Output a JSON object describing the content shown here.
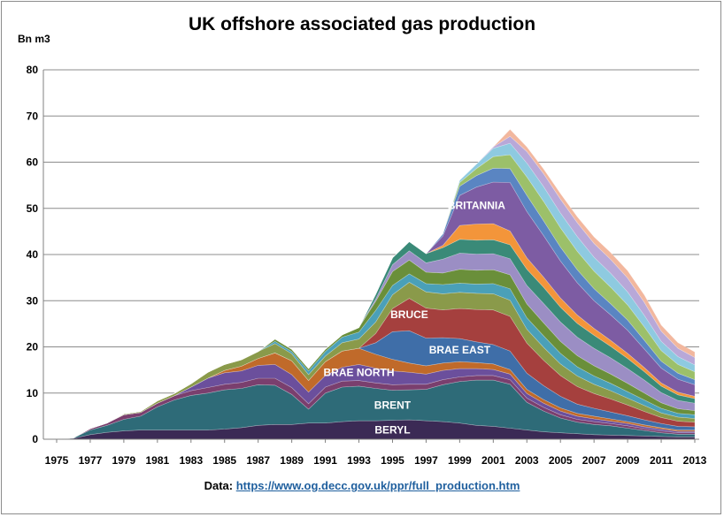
{
  "chart_data": {
    "type": "area",
    "title": "UK offshore associated gas production",
    "ylabel": "Bn m3",
    "xlabel": "",
    "ylim": [
      0,
      80
    ],
    "y_ticks": [
      "0",
      "10",
      "20",
      "30",
      "40",
      "50",
      "60",
      "70",
      "80"
    ],
    "x_ticks": [
      "1975",
      "1977",
      "1979",
      "1981",
      "1983",
      "1985",
      "1987",
      "1989",
      "1991",
      "1993",
      "1995",
      "1997",
      "1999",
      "2001",
      "2003",
      "2005",
      "2007",
      "2009",
      "2011",
      "2013"
    ],
    "grid": true,
    "stacked": true,
    "x": [
      1975,
      1976,
      1977,
      1978,
      1979,
      1980,
      1981,
      1982,
      1983,
      1984,
      1985,
      1986,
      1987,
      1988,
      1989,
      1990,
      1991,
      1992,
      1993,
      1994,
      1995,
      1996,
      1997,
      1998,
      1999,
      2000,
      2001,
      2002,
      2003,
      2004,
      2005,
      2006,
      2007,
      2008,
      2009,
      2010,
      2011,
      2012,
      2013
    ],
    "series": [
      {
        "name": "BERYL",
        "color": "#3b2a55",
        "values": [
          0,
          0.2,
          1.0,
          1.5,
          1.8,
          2.0,
          2.0,
          2.0,
          2.0,
          2.0,
          2.2,
          2.5,
          3.0,
          3.2,
          3.2,
          3.5,
          3.5,
          3.8,
          4.0,
          4.0,
          4.1,
          4.2,
          4.0,
          3.8,
          3.5,
          3.0,
          2.8,
          2.4,
          2.0,
          1.6,
          1.4,
          1.2,
          1.0,
          0.9,
          0.8,
          0.7,
          0.6,
          0.5,
          0.5
        ]
      },
      {
        "name": "BRENT",
        "color": "#2e6b78",
        "values": [
          0,
          0.1,
          1.0,
          1.5,
          2.5,
          3.0,
          5.0,
          6.5,
          7.5,
          8.0,
          8.5,
          8.5,
          8.8,
          8.5,
          6.5,
          3.0,
          6.5,
          7.5,
          7.5,
          7.0,
          6.5,
          6.5,
          6.8,
          8.0,
          9.0,
          9.8,
          10.0,
          9.5,
          6.0,
          4.5,
          3.2,
          2.5,
          2.2,
          2.0,
          1.6,
          1.2,
          0.8,
          0.6,
          0.6
        ]
      },
      {
        "name": "",
        "color": "#7a3f6e",
        "values": [
          0,
          0,
          0.3,
          0.5,
          1.0,
          0.8,
          0.8,
          0.9,
          1.0,
          1.2,
          1.2,
          1.3,
          1.4,
          1.5,
          1.5,
          1.2,
          1.3,
          1.3,
          1.2,
          1.2,
          1.2,
          1.2,
          1.1,
          1.1,
          1.0,
          1.0,
          1.0,
          1.0,
          0.9,
          0.8,
          0.7,
          0.6,
          0.6,
          0.5,
          0.5,
          0.4,
          0.4,
          0.3,
          0.3
        ]
      },
      {
        "name": "BRAE NORTH",
        "color": "#6b4f9c",
        "values": [
          0,
          0,
          0,
          0,
          0,
          0,
          0,
          0,
          0.8,
          2.0,
          2.5,
          2.5,
          2.8,
          3.0,
          2.8,
          2.5,
          2.5,
          3.0,
          3.5,
          3.2,
          3.0,
          2.6,
          2.2,
          2.0,
          1.8,
          1.5,
          1.3,
          1.2,
          1.0,
          0.9,
          0.8,
          0.7,
          0.6,
          0.5,
          0.5,
          0.4,
          0.4,
          0.3,
          0.3
        ]
      },
      {
        "name": "",
        "color": "#c06a2a",
        "values": [
          0,
          0,
          0,
          0,
          0,
          0,
          0,
          0,
          0,
          0,
          0.5,
          1.0,
          1.5,
          2.5,
          3.0,
          2.5,
          3.0,
          3.5,
          3.5,
          3.0,
          2.5,
          2.0,
          1.8,
          1.6,
          1.5,
          1.3,
          1.2,
          1.0,
          0.9,
          0.8,
          0.7,
          0.6,
          0.6,
          0.5,
          0.4,
          0.4,
          0.3,
          0.3,
          0.3
        ]
      },
      {
        "name": "BRAE EAST",
        "color": "#3f6ea8",
        "values": [
          0,
          0,
          0,
          0,
          0,
          0,
          0,
          0,
          0,
          0,
          0,
          0,
          0,
          0,
          0,
          0,
          0,
          0,
          0,
          2.5,
          6.0,
          7.0,
          6.0,
          5.5,
          5.0,
          4.5,
          4.2,
          4.0,
          3.5,
          3.0,
          2.5,
          2.0,
          1.7,
          1.5,
          1.3,
          1.1,
          0.9,
          0.8,
          0.7
        ]
      },
      {
        "name": "BRUCE",
        "color": "#a5403e",
        "values": [
          0,
          0,
          0,
          0,
          0,
          0,
          0,
          0,
          0,
          0,
          0,
          0,
          0,
          0,
          0,
          0,
          0,
          0,
          0,
          2.0,
          5.0,
          7.0,
          6.5,
          6.0,
          6.5,
          7.0,
          7.5,
          7.5,
          6.5,
          5.5,
          4.5,
          3.8,
          3.2,
          2.8,
          2.3,
          1.8,
          1.3,
          1.1,
          1.0
        ]
      },
      {
        "name": "",
        "color": "#8a9a4a",
        "values": [
          0,
          0,
          0,
          0,
          0.2,
          0.2,
          0.5,
          0.5,
          0.7,
          1.3,
          1.3,
          1.4,
          1.5,
          2.0,
          1.5,
          1.3,
          1.2,
          1.8,
          2.0,
          2.5,
          3.0,
          3.5,
          3.5,
          3.5,
          3.5,
          3.5,
          3.5,
          3.5,
          3.0,
          2.8,
          2.5,
          2.3,
          2.0,
          1.8,
          1.5,
          1.3,
          1.0,
          0.9,
          0.8
        ]
      },
      {
        "name": "",
        "color": "#4aa0b8",
        "values": [
          0,
          0,
          0,
          0,
          0,
          0,
          0,
          0,
          0,
          0,
          0,
          0,
          0,
          0.5,
          0.5,
          0.8,
          1.0,
          1.2,
          1.5,
          2.5,
          2.0,
          1.8,
          1.8,
          2.0,
          2.0,
          2.0,
          2.2,
          2.5,
          2.5,
          2.5,
          2.3,
          2.0,
          1.8,
          1.6,
          1.4,
          1.2,
          1.0,
          0.8,
          0.8
        ]
      },
      {
        "name": "",
        "color": "#6a8f3a",
        "values": [
          0,
          0,
          0,
          0,
          0,
          0,
          0,
          0,
          0,
          0,
          0,
          0,
          0,
          0.5,
          0.5,
          0.5,
          0.5,
          0.5,
          1.0,
          2.0,
          3.0,
          3.0,
          2.5,
          2.5,
          3.0,
          3.0,
          3.0,
          3.0,
          3.0,
          2.8,
          2.6,
          2.4,
          2.2,
          2.0,
          1.8,
          1.5,
          1.2,
          1.0,
          0.9
        ]
      },
      {
        "name": "",
        "color": "#9b8ec4",
        "values": [
          0,
          0,
          0,
          0,
          0,
          0,
          0,
          0,
          0,
          0,
          0,
          0,
          0,
          0,
          0,
          0,
          0,
          0,
          0,
          0.5,
          1.5,
          2.0,
          2.0,
          3.0,
          3.5,
          3.5,
          3.5,
          3.5,
          4.0,
          4.2,
          4.2,
          4.0,
          3.8,
          3.5,
          3.2,
          2.8,
          2.2,
          1.8,
          1.6
        ]
      },
      {
        "name": "",
        "color": "#3a8a78",
        "values": [
          0,
          0,
          0,
          0,
          0,
          0,
          0,
          0,
          0,
          0,
          0,
          0,
          0,
          0,
          0,
          0,
          0,
          0,
          0,
          1.0,
          1.5,
          2.0,
          2.0,
          2.5,
          3.0,
          3.0,
          3.0,
          3.0,
          3.5,
          3.5,
          3.2,
          3.0,
          2.8,
          2.5,
          2.2,
          1.8,
          1.4,
          1.2,
          1.0
        ]
      },
      {
        "name": "",
        "color": "#f3953a",
        "values": [
          0,
          0,
          0,
          0,
          0,
          0,
          0,
          0,
          0,
          0,
          0,
          0,
          0,
          0,
          0,
          0,
          0,
          0,
          0,
          0,
          0,
          0,
          0,
          0.5,
          3.0,
          3.5,
          3.5,
          3.0,
          2.5,
          2.2,
          2.0,
          1.8,
          1.5,
          1.3,
          1.1,
          0.9,
          0.7,
          0.6,
          0.5
        ]
      },
      {
        "name": "BRITANNIA",
        "color": "#7d5ca3",
        "values": [
          0,
          0,
          0,
          0,
          0,
          0,
          0,
          0,
          0,
          0,
          0,
          0,
          0,
          0,
          0,
          0,
          0,
          0,
          0,
          0,
          0,
          0,
          0,
          2.0,
          6.5,
          8.0,
          9.0,
          10.5,
          10.0,
          9.0,
          8.0,
          7.0,
          6.0,
          5.5,
          5.0,
          4.0,
          3.2,
          2.8,
          2.5
        ]
      },
      {
        "name": "",
        "color": "#5a85c2",
        "values": [
          0,
          0,
          0,
          0,
          0,
          0,
          0,
          0,
          0,
          0,
          0,
          0,
          0,
          0,
          0,
          0,
          0,
          0,
          0,
          0,
          0,
          0,
          0,
          0.5,
          2.0,
          2.5,
          3.0,
          3.0,
          3.5,
          3.2,
          3.0,
          2.8,
          2.6,
          2.4,
          2.2,
          1.9,
          1.5,
          1.3,
          1.1
        ]
      },
      {
        "name": "",
        "color": "#9cc06a",
        "values": [
          0,
          0,
          0,
          0,
          0,
          0,
          0,
          0,
          0,
          0,
          0,
          0,
          0,
          0,
          0,
          0,
          0,
          0,
          0,
          0,
          0,
          0,
          0,
          0,
          0.8,
          1.5,
          2.5,
          3.0,
          4.0,
          4.2,
          4.2,
          4.0,
          3.8,
          3.6,
          3.3,
          2.9,
          2.3,
          1.9,
          1.7
        ]
      },
      {
        "name": "",
        "color": "#8ecae0",
        "values": [
          0,
          0,
          0,
          0,
          0,
          0,
          0,
          0,
          0,
          0,
          0,
          0,
          0,
          0,
          0,
          0,
          0,
          0,
          0,
          0,
          0,
          0,
          0,
          0,
          0.5,
          1.0,
          1.8,
          2.5,
          3.0,
          3.2,
          3.2,
          3.2,
          3.0,
          3.0,
          2.8,
          2.5,
          2.0,
          1.7,
          1.5
        ]
      },
      {
        "name": "",
        "color": "#b8a8d8",
        "values": [
          0,
          0,
          0,
          0,
          0,
          0,
          0,
          0,
          0,
          0,
          0,
          0,
          0,
          0,
          0,
          0,
          0,
          0,
          0,
          0,
          0,
          0,
          0,
          0,
          0,
          0,
          0.3,
          1.5,
          2.5,
          2.8,
          3.0,
          3.0,
          3.0,
          3.0,
          3.0,
          2.8,
          2.2,
          1.8,
          1.6
        ]
      },
      {
        "name": "",
        "color": "#f2b79e",
        "values": [
          0,
          0,
          0,
          0,
          0,
          0,
          0,
          0,
          0,
          0,
          0,
          0,
          0,
          0,
          0,
          0,
          0,
          0,
          0,
          0,
          0,
          0,
          0,
          0,
          0,
          0,
          0,
          1.5,
          1.0,
          1.0,
          1.2,
          1.3,
          1.4,
          1.5,
          1.6,
          1.6,
          1.3,
          1.2,
          1.2
        ]
      }
    ],
    "annotations": [
      {
        "text": "BERYL",
        "x": 2.0,
        "y": 2.0
      },
      {
        "text": "BRENT",
        "x": 2.0,
        "y": 7.5
      },
      {
        "text": "BRAE NORTH",
        "x": 1.5,
        "y": 21.5
      },
      {
        "text": "BRAE EAST",
        "x": 2.0,
        "y": 24.0
      },
      {
        "text": "BRUCE",
        "x": 1.5,
        "y": 35.5
      },
      {
        "text": "BRITANNIA",
        "x": 2.0,
        "y": 56.5
      }
    ],
    "footer_prefix": "Data: ",
    "footer_link": "https://www.og.decc.gov.uk/ppr/full_production.htm"
  }
}
